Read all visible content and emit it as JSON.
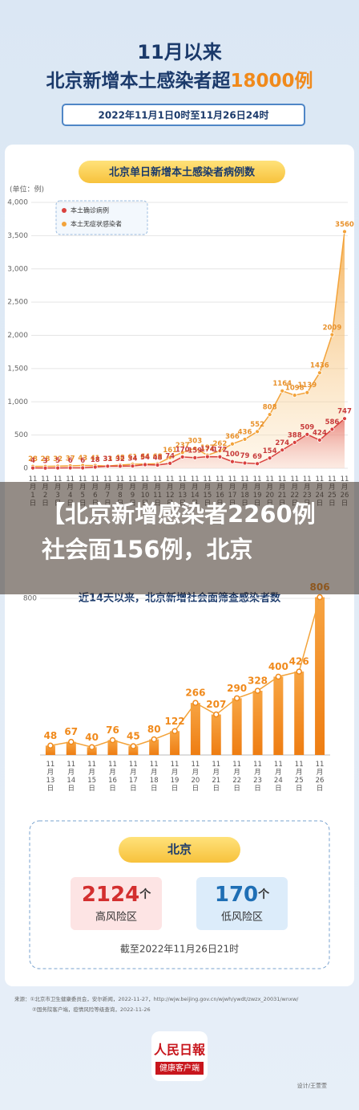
{
  "header": {
    "title": "11月以来",
    "headline": "北京新增本土感染者超",
    "headline_highlight": "18000例",
    "period": "2022年11月1日0时至11月26日24时"
  },
  "overlay_title": "【北京新增感染者2260例社会面156例，北京",
  "chart_data": [
    {
      "type": "line",
      "title": "北京单日新增本土感染者病例数",
      "y_label": "(单位：例)",
      "categories": [
        "11月1日",
        "11月2日",
        "11月3日",
        "11月4日",
        "11月5日",
        "11月6日",
        "11月7日",
        "11月8日",
        "11月9日",
        "11月10日",
        "11月11日",
        "11月12日",
        "11月13日",
        "11月14日",
        "11月15日",
        "11月16日",
        "11月17日",
        "11月18日",
        "11月19日",
        "11月20日",
        "11月21日",
        "11月22日",
        "11月23日",
        "11月24日",
        "11月25日",
        "11月26日"
      ],
      "series": [
        {
          "name": "本土确诊病例",
          "color": "#d9413e",
          "values": [
            4,
            3,
            5,
            6,
            6,
            18,
            31,
            32,
            34,
            54,
            48,
            74,
            170,
            159,
            174,
            172,
            100,
            79,
            69,
            154,
            274,
            388,
            509,
            424,
            586,
            747
          ]
        },
        {
          "name": "本土无症状感染者",
          "color": "#f3a33a",
          "values": [
            28,
            28,
            32,
            37,
            43,
            41,
            33,
            48,
            61,
            64,
            68,
            161,
            237,
            303,
            197,
            262,
            366,
            436,
            552,
            808,
            1164,
            1098,
            1139,
            1436,
            2009,
            3560
          ]
        }
      ],
      "ylim": [
        0,
        4000
      ],
      "yticks": [
        0,
        500,
        {
          "value": 1000,
          "label": "1,000"
        },
        {
          "value": 1500,
          "label": "1,500"
        },
        {
          "value": 2000,
          "label": "2,000"
        },
        {
          "value": 2500,
          "label": "2,500"
        },
        {
          "value": 3000,
          "label": "3,000"
        },
        {
          "value": 3500,
          "label": "3,500"
        },
        {
          "value": 4000,
          "label": "4,000"
        }
      ],
      "grid": true
    },
    {
      "type": "bar",
      "title": "近14天以来，北京新增社会面筛查感染者数",
      "categories": [
        "11月13日",
        "11月14日",
        "11月15日",
        "11月16日",
        "11月17日",
        "11月18日",
        "11月19日",
        "11月20日",
        "11月21日",
        "11月22日",
        "11月23日",
        "11月24日",
        "11月25日",
        "11月26日"
      ],
      "values": [
        48,
        67,
        40,
        76,
        45,
        80,
        122,
        266,
        207,
        290,
        328,
        400,
        426,
        806
      ],
      "color": "#f08a1c",
      "ylim": [
        0,
        800
      ],
      "yticks": [
        800
      ],
      "grid": true
    }
  ],
  "summary": {
    "title": "北京",
    "high_count": 2124,
    "high_unit": "个",
    "high_label": "高风险区",
    "low_count": 170,
    "low_unit": "个",
    "low_label": "低风险区",
    "as_of": "截至2022年11月26日21时"
  },
  "sources": [
    "来源：①北京市卫生健康委员会，安尔新闻，2022-11-27，http://wjw.beijing.gov.cn/wjwh/ywdt/zwzx_20031/wnxw/",
    "②国务院客户端，疫情风险等级查询，2022-11-26"
  ],
  "logo": {
    "name": "人民日報",
    "sub": "健康客户端"
  },
  "credit": "设计/王萱萱"
}
